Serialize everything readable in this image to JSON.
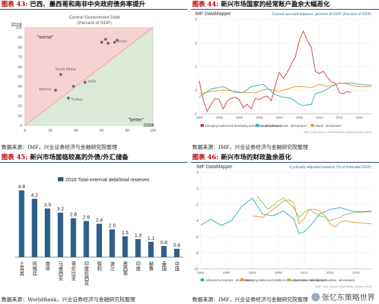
{
  "panels": {
    "p1": {
      "tag": "图表 43:",
      "title": "巴西、墨西哥和南非中央政府债务率提升",
      "source": "数据来源：IMF，兴业证券经济与金融研究院整理"
    },
    "p2": {
      "tag": "图表 44:",
      "title": "新兴市场国家的经常账户盈余大幅恶化",
      "source": "数据来源：IMF，兴业证券经济与金融研究院整理"
    },
    "p3": {
      "tag": "图表 45:",
      "title": "新兴市场面临较高的外债/外汇储备",
      "source": "数据来源：WorldBank，兴业证券经济与金融研究院整理"
    },
    "p4": {
      "tag": "图表 46:",
      "title": "新兴市场的财政盈余恶化",
      "source": "数据来源：IMF，兴业证券经济与金融研究院整理"
    }
  },
  "watermark": "张忆东策略世界",
  "chart_data": [
    {
      "id": "debt-scatter",
      "type": "scatter",
      "title": "Central Government Debt",
      "subtitle": "(Percent of GDP)",
      "xlim": [
        0,
        100
      ],
      "ylim": [
        0,
        100
      ],
      "xticks": [
        0,
        20,
        40,
        60,
        80,
        100
      ],
      "yticks": [
        0,
        10,
        20,
        30,
        40,
        50,
        60,
        70,
        80,
        90,
        100
      ],
      "xlabel_corner": "2008",
      "ylabel_corner": "2018",
      "region_labels": {
        "worse": "\"worse\"",
        "better": "\"better\""
      },
      "colors": {
        "worse_fill": "#f5d3d3",
        "better_fill": "#dcead7",
        "diagonal": "#e8a0a0"
      },
      "points": [
        {
          "x": 60,
          "y": 85,
          "label": ""
        },
        {
          "x": 63,
          "y": 88,
          "label": ""
        },
        {
          "x": 65,
          "y": 84,
          "label": ""
        },
        {
          "x": 70,
          "y": 85,
          "label": "Brazil"
        },
        {
          "x": 72,
          "y": 87,
          "label": ""
        },
        {
          "x": 28,
          "y": 52,
          "label": "South Africa"
        },
        {
          "x": 24,
          "y": 36,
          "label": "Mexico"
        },
        {
          "x": 38,
          "y": 40,
          "label": ""
        },
        {
          "x": 47,
          "y": 44,
          "label": "India"
        },
        {
          "x": 34,
          "y": 28,
          "label": "Turkey"
        }
      ]
    },
    {
      "id": "current-account",
      "type": "line",
      "source_label": "IMF DataMapper",
      "title": "Current account balance, percent of GDP (Percent of GDP)",
      "xlim": [
        1980,
        2023
      ],
      "ylim": [
        -2,
        6
      ],
      "xticks": [
        1980,
        1985,
        1990,
        1995,
        2000,
        2005,
        2010,
        2015,
        2020
      ],
      "yticks": [
        -2,
        0,
        2,
        4,
        6
      ],
      "footnote": "©IMF, 2018, Source: World Economic Outlook (October 2018)",
      "series": [
        {
          "name": "Emerging market and developing economies - all indicators",
          "color": "#d23b3b",
          "x": [
            1980,
            1981,
            1982,
            1983,
            1984,
            1985,
            1986,
            1987,
            1988,
            1989,
            1990,
            1991,
            1992,
            1993,
            1994,
            1995,
            1996,
            1997,
            1998,
            1999,
            2000,
            2001,
            2002,
            2003,
            2004,
            2005,
            2006,
            2007,
            2008,
            2009,
            2010,
            2011,
            2012,
            2013,
            2014,
            2015,
            2016,
            2017,
            2018
          ],
          "y": [
            0.8,
            -0.8,
            -1.8,
            -1.2,
            -0.7,
            -0.8,
            -1.6,
            -0.9,
            -0.7,
            -0.6,
            -0.8,
            -1.5,
            -1.2,
            -1.6,
            -0.7,
            -0.8,
            -0.6,
            -0.5,
            -0.9,
            0.4,
            1.5,
            1.0,
            1.5,
            2.2,
            2.8,
            4.2,
            5.0,
            4.2,
            3.6,
            1.6,
            1.4,
            1.6,
            1.1,
            0.7,
            0.6,
            -0.2,
            -0.3,
            -0.1,
            -0.2
          ]
        },
        {
          "name": "Advanced economies - all indicators",
          "color": "#2fb0b8",
          "x": [
            1980,
            1983,
            1986,
            1989,
            1991,
            1993,
            1996,
            1999,
            2001,
            2003,
            2005,
            2006,
            2008,
            2009,
            2011,
            2013,
            2015,
            2017,
            2018,
            2020,
            2023
          ],
          "y": [
            -0.6,
            0.1,
            0.3,
            -0.2,
            -0.2,
            0.3,
            0.5,
            -0.4,
            -0.6,
            -0.7,
            -1.2,
            -1.3,
            -1.2,
            -0.3,
            -0.1,
            0.3,
            0.6,
            0.6,
            0.6,
            0.5,
            0.4
          ]
        },
        {
          "name": "World - all indicators",
          "color": "#e6982e",
          "x": [
            1980,
            1983,
            1986,
            1989,
            1991,
            1994,
            1997,
            2000,
            2002,
            2004,
            2006,
            2008,
            2010,
            2012,
            2014,
            2016,
            2018,
            2020,
            2023
          ],
          "y": [
            -0.3,
            -0.1,
            0.0,
            -0.1,
            -0.2,
            -0.2,
            0.1,
            -0.1,
            0.1,
            0.3,
            0.3,
            0.2,
            0.5,
            0.3,
            0.5,
            0.6,
            0.4,
            0.3,
            0.3
          ]
        }
      ]
    },
    {
      "id": "external-debt-reserves",
      "type": "bar",
      "legend": "2018 Total external debt/total reserves",
      "ylim": [
        0,
        6
      ],
      "categories": [
        "土耳其",
        "阿根廷",
        "南非",
        "马来西亚",
        "哥伦比亚",
        "印度尼西亚",
        "智利",
        "波兰",
        "墨西哥",
        "印度",
        "秘鲁",
        "泰国",
        "中国"
      ],
      "values": [
        4.8,
        4.2,
        3.5,
        3.2,
        2.8,
        2.6,
        2.4,
        2.0,
        1.5,
        1.3,
        1.1,
        0.8,
        0.6
      ],
      "colors": {
        "bar": "#2e5f8a"
      }
    },
    {
      "id": "fiscal-balance",
      "type": "line",
      "source_label": "IMF DataMapper",
      "title": "Cyclically adjusted balance (% of Potential GDP)",
      "xlim": [
        1990,
        2023
      ],
      "ylim": [
        -10,
        2
      ],
      "xticks": [
        1990,
        1995,
        2000,
        2005,
        2010,
        2015,
        2020
      ],
      "yticks": [
        -10,
        -8,
        -6,
        -4,
        -2,
        0,
        2
      ],
      "footnote": "©IMF, 2018, Source: Fiscal Monitor (October 2018)",
      "series": [
        {
          "name": "Advanced economies - all indicators",
          "color": "#2fb0b8",
          "x": [
            1990,
            1992,
            1994,
            1996,
            1998,
            2000,
            2002,
            2004,
            2006,
            2008,
            2009,
            2010,
            2011,
            2013,
            2015,
            2017,
            2019,
            2021,
            2023
          ],
          "y": [
            -4.6,
            -3.8,
            -4.6,
            -4.0,
            -2.2,
            -1.2,
            -3.2,
            -3.4,
            -2.8,
            -3.8,
            -5.6,
            -5.4,
            -4.8,
            -3.2,
            -2.6,
            -2.4,
            -2.8,
            -2.9,
            -2.8
          ]
        },
        {
          "name": "Emerging Market and Middle-Income Economies - all indicators",
          "color": "#e6982e",
          "x": [
            2000,
            2002,
            2004,
            2006,
            2007,
            2008,
            2009,
            2010,
            2011,
            2012,
            2013,
            2014,
            2015,
            2016,
            2017,
            2018,
            2019,
            2021,
            2023
          ],
          "y": [
            -3.4,
            -3.6,
            -2.6,
            -1.6,
            -1.4,
            -1.8,
            -4.4,
            -3.8,
            -2.6,
            -2.6,
            -2.8,
            -3.4,
            -4.4,
            -4.8,
            -4.2,
            -4.0,
            -4.2,
            -4.3,
            -4.4
          ]
        },
        {
          "name": "Low-Income Developing Countries - all indicators",
          "color": "#8fc24a",
          "x": [
            2001,
            2003,
            2005,
            2006,
            2007,
            2008,
            2009,
            2010,
            2011,
            2012,
            2013,
            2014,
            2015,
            2016,
            2017,
            2018,
            2020,
            2023
          ],
          "y": [
            -1.0,
            -2.6,
            -1.6,
            -1.2,
            -1.8,
            -2.4,
            -3.6,
            -3.0,
            -2.6,
            -3.0,
            -3.4,
            -3.6,
            -4.0,
            -3.8,
            -3.6,
            -3.2,
            -3.0,
            -2.9
          ]
        }
      ]
    }
  ]
}
